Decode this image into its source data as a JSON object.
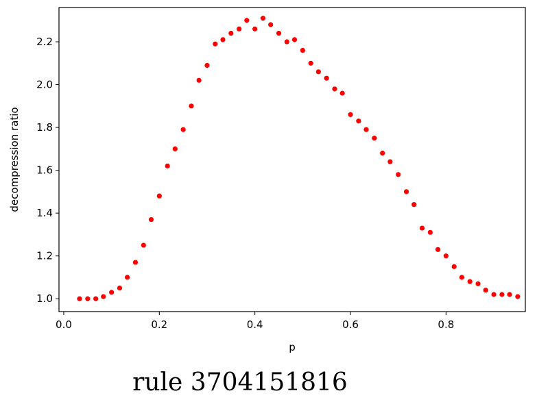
{
  "chart_data": {
    "type": "scatter",
    "xlabel": "p",
    "ylabel": "decompression ratio",
    "xlim": [
      -0.01,
      0.966
    ],
    "ylim": [
      0.94,
      2.36
    ],
    "xticks": [
      0.0,
      0.2,
      0.4,
      0.6,
      0.8
    ],
    "xtick_labels": [
      "0.0",
      "0.2",
      "0.4",
      "0.6",
      "0.8"
    ],
    "yticks": [
      1.0,
      1.2,
      1.4,
      1.6,
      1.8,
      2.0,
      2.2
    ],
    "ytick_labels": [
      "1.0",
      "1.2",
      "1.4",
      "1.6",
      "1.8",
      "2.0",
      "2.2"
    ],
    "grid": false,
    "marker_color": "#ff0000",
    "series": [
      {
        "x": [
          0.033,
          0.05,
          0.067,
          0.083,
          0.1,
          0.117,
          0.133,
          0.15,
          0.167,
          0.183,
          0.2,
          0.217,
          0.233,
          0.25,
          0.267,
          0.283,
          0.3,
          0.317,
          0.333,
          0.35,
          0.367,
          0.383,
          0.4,
          0.417,
          0.433,
          0.45,
          0.467,
          0.483,
          0.5,
          0.517,
          0.533,
          0.55,
          0.567,
          0.583,
          0.6,
          0.617,
          0.633,
          0.65,
          0.667,
          0.683,
          0.7,
          0.717,
          0.733,
          0.75,
          0.767,
          0.783,
          0.8,
          0.817,
          0.833,
          0.85,
          0.867,
          0.883,
          0.9,
          0.917,
          0.933,
          0.95
        ],
        "y": [
          1.0,
          1.0,
          1.0,
          1.01,
          1.03,
          1.05,
          1.1,
          1.17,
          1.25,
          1.37,
          1.48,
          1.62,
          1.7,
          1.79,
          1.9,
          2.02,
          2.09,
          2.19,
          2.21,
          2.24,
          2.26,
          2.3,
          2.26,
          2.31,
          2.28,
          2.24,
          2.2,
          2.21,
          2.16,
          2.1,
          2.06,
          2.03,
          1.98,
          1.96,
          1.86,
          1.83,
          1.79,
          1.75,
          1.68,
          1.64,
          1.58,
          1.5,
          1.44,
          1.33,
          1.31,
          1.23,
          1.2,
          1.15,
          1.1,
          1.08,
          1.07,
          1.04,
          1.02,
          1.02,
          1.02,
          1.01
        ]
      }
    ]
  },
  "caption": "rule 3704151816"
}
